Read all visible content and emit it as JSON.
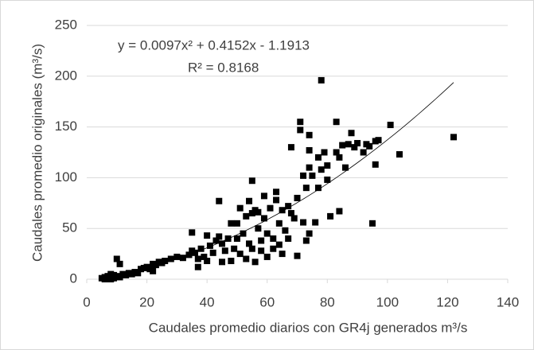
{
  "chart_data": {
    "type": "scatter",
    "annotations": [
      "y = 0.0097x² + 0.4152x - 1.1913",
      "R² = 0.8168"
    ],
    "x_label": "Caudales  promedio diarios con GR4j generados m³/s",
    "y_label": "Caudales promedio originales (m³/s)",
    "xlim": [
      0,
      140
    ],
    "xticks": [
      0,
      20,
      40,
      60,
      80,
      100,
      120,
      140
    ],
    "ylim": [
      0,
      250
    ],
    "yticks": [
      0,
      50,
      100,
      150,
      200,
      250
    ],
    "grid": true,
    "color": "#000000",
    "trendline": {
      "coefficients": [
        0.0097,
        0.4152,
        -1.1913
      ],
      "x_range": [
        5,
        122
      ],
      "color": "#000000"
    },
    "x": [
      5,
      6,
      6,
      7,
      7,
      8,
      8,
      8,
      9,
      9,
      10,
      10,
      11,
      11,
      12,
      13,
      14,
      15,
      16,
      17,
      18,
      19,
      20,
      21,
      22,
      22,
      23,
      24,
      25,
      26,
      28,
      30,
      32,
      34,
      35,
      35,
      36,
      37,
      37,
      38,
      39,
      40,
      40,
      41,
      42,
      43,
      44,
      44,
      45,
      45,
      46,
      47,
      48,
      48,
      49,
      50,
      50,
      51,
      51,
      52,
      53,
      53,
      54,
      54,
      55,
      55,
      55,
      56,
      56,
      57,
      57,
      58,
      58,
      59,
      59,
      60,
      60,
      61,
      62,
      62,
      63,
      63,
      64,
      64,
      65,
      65,
      66,
      67,
      67,
      68,
      68,
      69,
      70,
      70,
      71,
      71,
      72,
      72,
      73,
      73,
      74,
      74,
      74,
      74,
      75,
      76,
      77,
      77,
      78,
      78,
      79,
      80,
      80,
      81,
      83,
      83,
      84,
      84,
      85,
      86,
      87,
      88,
      89,
      90,
      92,
      93,
      94,
      95,
      96,
      96,
      97,
      101,
      104,
      122
    ],
    "y": [
      1,
      2,
      0,
      3,
      1,
      2,
      5,
      0,
      4,
      1,
      3,
      20,
      15,
      2,
      5,
      4,
      6,
      5,
      7,
      6,
      10,
      11,
      12,
      10,
      8,
      15,
      14,
      17,
      16,
      18,
      20,
      22,
      21,
      24,
      46,
      28,
      26,
      20,
      12,
      30,
      22,
      43,
      18,
      33,
      26,
      38,
      77,
      42,
      35,
      17,
      28,
      40,
      18,
      55,
      30,
      55,
      40,
      70,
      25,
      45,
      62,
      20,
      77,
      35,
      97,
      65,
      30,
      68,
      17,
      50,
      66,
      38,
      28,
      82,
      60,
      45,
      22,
      70,
      40,
      30,
      86,
      78,
      55,
      34,
      68,
      25,
      48,
      72,
      40,
      130,
      65,
      60,
      80,
      23,
      147,
      155,
      102,
      56,
      90,
      38,
      142,
      127,
      110,
      45,
      102,
      56,
      90,
      120,
      196,
      108,
      125,
      112,
      98,
      62,
      155,
      125,
      67,
      120,
      132,
      110,
      133,
      144,
      130,
      134,
      125,
      133,
      131,
      55,
      113,
      136,
      137,
      152,
      123,
      140
    ]
  }
}
